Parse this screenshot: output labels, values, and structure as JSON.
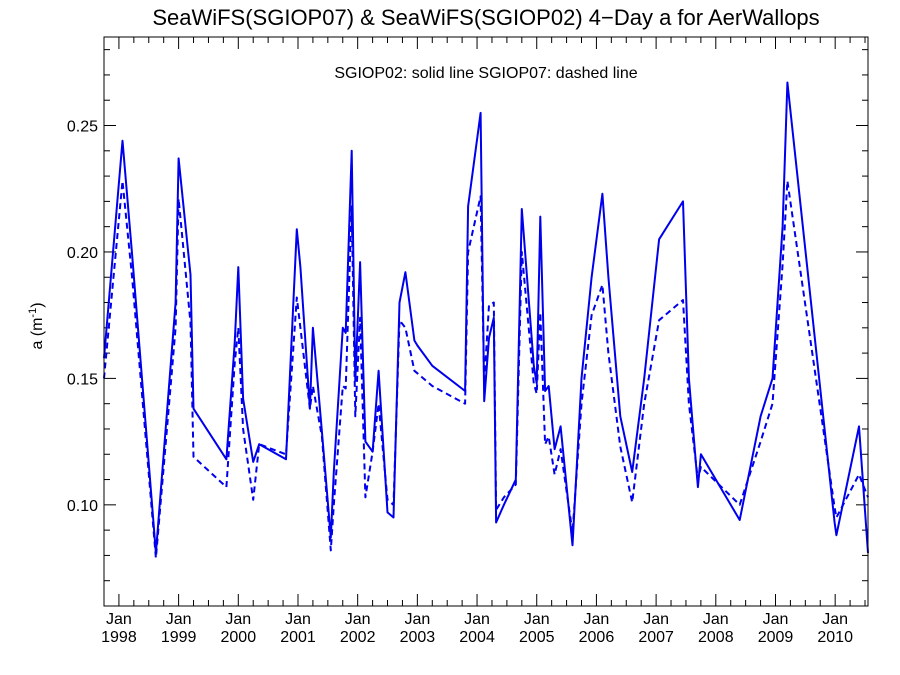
{
  "chart_data": {
    "type": "line",
    "title": "SeaWiFS(SGIOP07) & SeaWiFS(SGIOP02) 4−Day a for AerWallops",
    "annotation": "SGIOP02: solid line   SGIOP07: dashed line",
    "ylabel": {
      "main": "a (m",
      "sup": "-1",
      "close": ")"
    },
    "xlabel": "",
    "xlim": [
      1997.75,
      2010.55
    ],
    "ylim": [
      0.06,
      0.285
    ],
    "yticks": [
      {
        "value": 0.1,
        "label": "0.10"
      },
      {
        "value": 0.15,
        "label": "0.15"
      },
      {
        "value": 0.2,
        "label": "0.20"
      },
      {
        "value": 0.25,
        "label": "0.25"
      }
    ],
    "xticks": [
      {
        "value": 1998,
        "month": "Jan",
        "year": "1998"
      },
      {
        "value": 1999,
        "month": "Jan",
        "year": "1999"
      },
      {
        "value": 2000,
        "month": "Jan",
        "year": "2000"
      },
      {
        "value": 2001,
        "month": "Jan",
        "year": "2001"
      },
      {
        "value": 2002,
        "month": "Jan",
        "year": "2002"
      },
      {
        "value": 2003,
        "month": "Jan",
        "year": "2003"
      },
      {
        "value": 2004,
        "month": "Jan",
        "year": "2004"
      },
      {
        "value": 2005,
        "month": "Jan",
        "year": "2005"
      },
      {
        "value": 2006,
        "month": "Jan",
        "year": "2006"
      },
      {
        "value": 2007,
        "month": "Jan",
        "year": "2007"
      },
      {
        "value": 2008,
        "month": "Jan",
        "year": "2008"
      },
      {
        "value": 2009,
        "month": "Jan",
        "year": "2009"
      },
      {
        "value": 2010,
        "month": "Jan",
        "year": "2010"
      }
    ],
    "grid": false,
    "line_color": "#0000ee",
    "series": [
      {
        "style": "solid",
        "x": [
          1997.75,
          1998.06,
          1998.22,
          1998.62,
          1998.95,
          1999.0,
          1999.2,
          1999.25,
          1999.8,
          1999.94,
          2000.0,
          2000.08,
          2000.25,
          2000.35,
          2000.8,
          2000.98,
          2001.04,
          2001.2,
          2001.25,
          2001.4,
          2001.55,
          2001.6,
          2001.75,
          2001.8,
          2001.9,
          2001.96,
          2002.04,
          2002.13,
          2002.25,
          2002.35,
          2002.5,
          2002.6,
          2002.7,
          2002.8,
          2002.95,
          2003.0,
          2003.25,
          2003.8,
          2003.85,
          2004.06,
          2004.12,
          2004.2,
          2004.28,
          2004.32,
          2004.45,
          2004.65,
          2004.75,
          2004.95,
          2005.0,
          2005.06,
          2005.14,
          2005.2,
          2005.3,
          2005.4,
          2005.6,
          2005.75,
          2005.92,
          2006.1,
          2006.2,
          2006.4,
          2006.6,
          2006.8,
          2007.05,
          2007.45,
          2007.55,
          2007.7,
          2007.75,
          2008.4,
          2008.75,
          2008.95,
          2009.12,
          2009.2,
          2009.99,
          2010.02,
          2010.4,
          2010.55
        ],
        "y": [
          0.158,
          0.244,
          0.199,
          0.081,
          0.18,
          0.237,
          0.191,
          0.138,
          0.118,
          0.164,
          0.194,
          0.142,
          0.117,
          0.124,
          0.118,
          0.209,
          0.194,
          0.138,
          0.17,
          0.129,
          0.087,
          0.113,
          0.17,
          0.168,
          0.24,
          0.149,
          0.196,
          0.125,
          0.121,
          0.153,
          0.097,
          0.095,
          0.18,
          0.192,
          0.165,
          0.163,
          0.155,
          0.145,
          0.218,
          0.255,
          0.141,
          0.166,
          0.174,
          0.093,
          0.1,
          0.11,
          0.217,
          0.155,
          0.148,
          0.214,
          0.145,
          0.147,
          0.122,
          0.131,
          0.084,
          0.15,
          0.19,
          0.223,
          0.19,
          0.135,
          0.113,
          0.15,
          0.205,
          0.22,
          0.15,
          0.107,
          0.12,
          0.094,
          0.135,
          0.15,
          0.21,
          0.267,
          0.093,
          0.088,
          0.131,
          0.081
        ]
      },
      {
        "style": "dashed",
        "x": [
          1997.75,
          1998.06,
          1998.22,
          1998.62,
          1998.95,
          1999.0,
          1999.2,
          1999.25,
          1999.8,
          1999.94,
          2000.0,
          2000.08,
          2000.25,
          2000.35,
          2000.8,
          2000.98,
          2001.04,
          2001.2,
          2001.25,
          2001.4,
          2001.55,
          2001.6,
          2001.75,
          2001.8,
          2001.9,
          2001.96,
          2002.04,
          2002.13,
          2002.25,
          2002.35,
          2002.5,
          2002.6,
          2002.7,
          2002.8,
          2002.95,
          2003.0,
          2003.25,
          2003.8,
          2003.85,
          2004.06,
          2004.12,
          2004.2,
          2004.28,
          2004.32,
          2004.45,
          2004.65,
          2004.75,
          2004.95,
          2005.0,
          2005.06,
          2005.14,
          2005.2,
          2005.3,
          2005.4,
          2005.6,
          2005.75,
          2005.92,
          2006.1,
          2006.2,
          2006.4,
          2006.6,
          2006.8,
          2007.05,
          2007.45,
          2007.55,
          2007.7,
          2007.75,
          2008.4,
          2008.75,
          2008.95,
          2009.12,
          2009.2,
          2009.99,
          2010.02,
          2010.4,
          2010.55
        ],
        "y": [
          0.15,
          0.228,
          0.19,
          0.079,
          0.17,
          0.221,
          0.172,
          0.119,
          0.107,
          0.156,
          0.17,
          0.13,
          0.102,
          0.124,
          0.12,
          0.182,
          0.17,
          0.138,
          0.147,
          0.127,
          0.082,
          0.1,
          0.147,
          0.146,
          0.218,
          0.135,
          0.174,
          0.103,
          0.121,
          0.14,
          0.102,
          0.1,
          0.173,
          0.17,
          0.153,
          0.152,
          0.147,
          0.14,
          0.2,
          0.222,
          0.148,
          0.179,
          0.18,
          0.098,
          0.103,
          0.108,
          0.2,
          0.148,
          0.144,
          0.176,
          0.124,
          0.127,
          0.112,
          0.122,
          0.089,
          0.14,
          0.175,
          0.187,
          0.16,
          0.123,
          0.101,
          0.14,
          0.173,
          0.181,
          0.14,
          0.11,
          0.115,
          0.1,
          0.125,
          0.14,
          0.195,
          0.228,
          0.099,
          0.095,
          0.112,
          0.103
        ]
      }
    ]
  }
}
